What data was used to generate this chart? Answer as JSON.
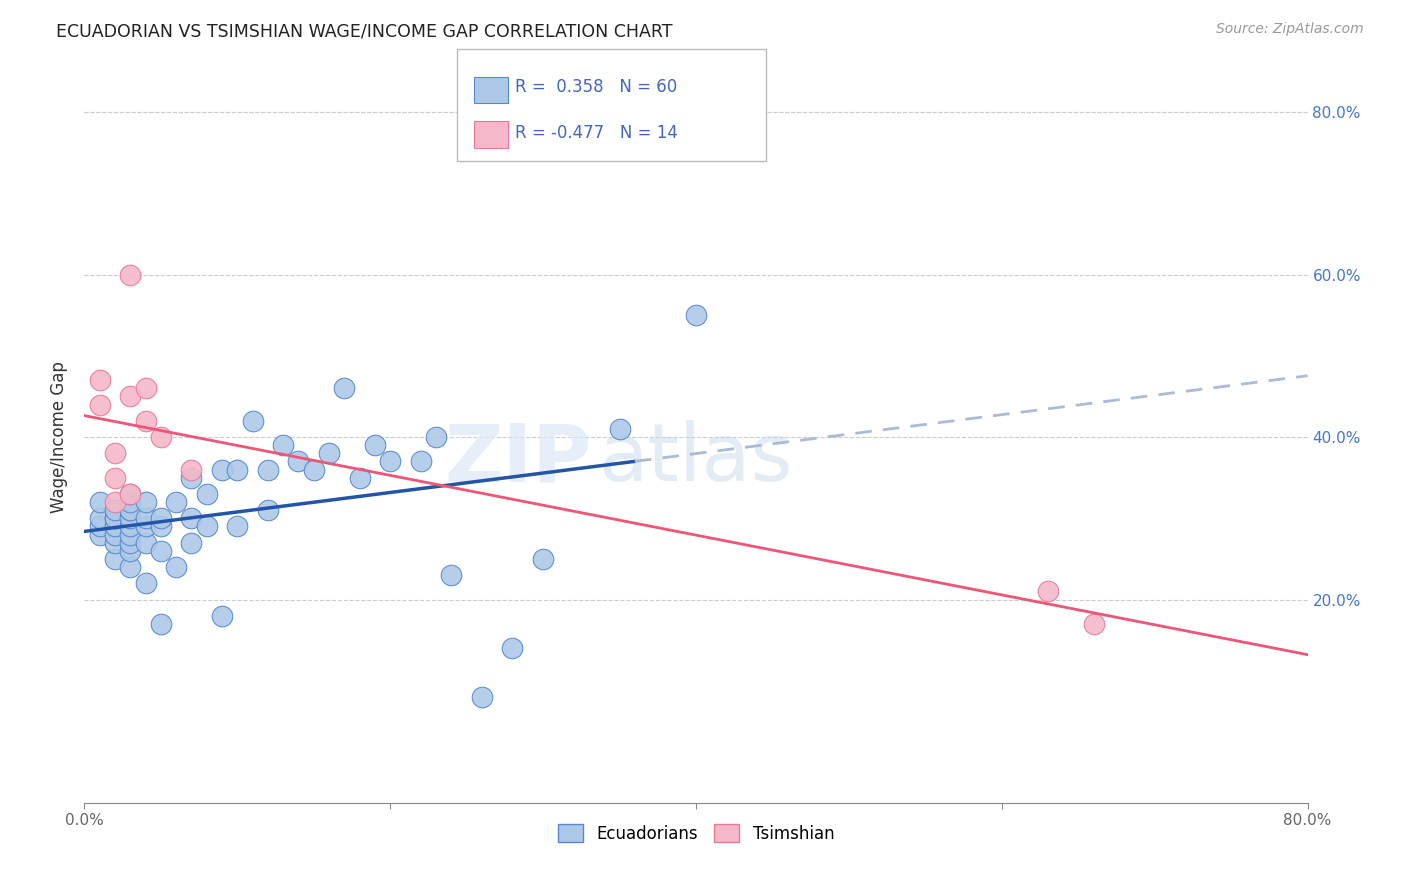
{
  "title": "ECUADORIAN VS TSIMSHIAN WAGE/INCOME GAP CORRELATION CHART",
  "source": "Source: ZipAtlas.com",
  "ylabel": "Wage/Income Gap",
  "xlim": [
    0.0,
    0.8
  ],
  "ylim": [
    -0.05,
    0.85
  ],
  "xtick_labels": [
    "0.0%",
    "",
    "",
    "",
    "80.0%"
  ],
  "xtick_vals": [
    0.0,
    0.2,
    0.4,
    0.6,
    0.8
  ],
  "right_ytick_labels": [
    "20.0%",
    "40.0%",
    "60.0%",
    "80.0%"
  ],
  "right_ytick_vals": [
    0.2,
    0.4,
    0.6,
    0.8
  ],
  "ecuadorian_color": "#aec9e8",
  "ecuadorian_edge": "#5588cc",
  "tsimshian_color": "#f4b8c8",
  "tsimshian_edge": "#e8789a",
  "regression_blue": "#2255aa",
  "regression_pink": "#ee5577",
  "regression_dash_blue": "#aabbd8",
  "R_ecuadorian": 0.358,
  "N_ecuadorian": 60,
  "R_tsimshian": -0.477,
  "N_tsimshian": 14,
  "legend_label_1": "Ecuadorians",
  "legend_label_2": "Tsimshian",
  "watermark_zip": "ZIP",
  "watermark_atlas": "atlas",
  "blue_scatter_x": [
    0.01,
    0.01,
    0.01,
    0.01,
    0.02,
    0.02,
    0.02,
    0.02,
    0.02,
    0.02,
    0.02,
    0.03,
    0.03,
    0.03,
    0.03,
    0.03,
    0.03,
    0.03,
    0.03,
    0.03,
    0.03,
    0.04,
    0.04,
    0.04,
    0.04,
    0.04,
    0.05,
    0.05,
    0.05,
    0.05,
    0.06,
    0.06,
    0.07,
    0.07,
    0.07,
    0.08,
    0.08,
    0.09,
    0.09,
    0.1,
    0.1,
    0.11,
    0.12,
    0.12,
    0.13,
    0.14,
    0.15,
    0.16,
    0.17,
    0.18,
    0.19,
    0.2,
    0.22,
    0.23,
    0.24,
    0.26,
    0.28,
    0.3,
    0.35,
    0.4
  ],
  "blue_scatter_y": [
    0.28,
    0.29,
    0.3,
    0.32,
    0.25,
    0.27,
    0.28,
    0.29,
    0.3,
    0.3,
    0.31,
    0.24,
    0.26,
    0.27,
    0.28,
    0.29,
    0.3,
    0.31,
    0.31,
    0.32,
    0.33,
    0.22,
    0.27,
    0.29,
    0.3,
    0.32,
    0.17,
    0.26,
    0.29,
    0.3,
    0.24,
    0.32,
    0.27,
    0.3,
    0.35,
    0.29,
    0.33,
    0.18,
    0.36,
    0.29,
    0.36,
    0.42,
    0.31,
    0.36,
    0.39,
    0.37,
    0.36,
    0.38,
    0.46,
    0.35,
    0.39,
    0.37,
    0.37,
    0.4,
    0.23,
    0.08,
    0.14,
    0.25,
    0.41,
    0.55
  ],
  "pink_scatter_x": [
    0.01,
    0.01,
    0.02,
    0.02,
    0.02,
    0.03,
    0.03,
    0.03,
    0.04,
    0.04,
    0.05,
    0.07,
    0.63,
    0.66
  ],
  "pink_scatter_y": [
    0.44,
    0.47,
    0.32,
    0.35,
    0.38,
    0.33,
    0.45,
    0.6,
    0.42,
    0.46,
    0.4,
    0.36,
    0.21,
    0.17
  ]
}
